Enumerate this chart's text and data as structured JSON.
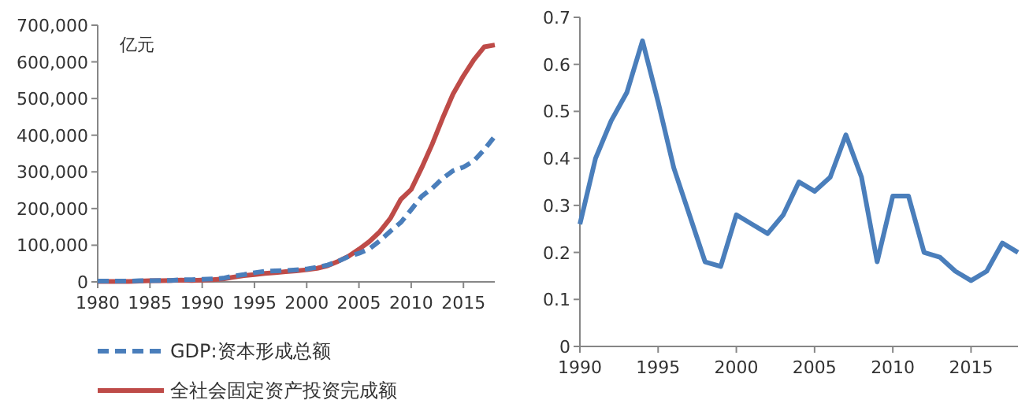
{
  "chart_data": [
    {
      "type": "line",
      "x": [
        1980,
        1981,
        1982,
        1983,
        1984,
        1985,
        1986,
        1987,
        1988,
        1989,
        1990,
        1991,
        1992,
        1993,
        1994,
        1995,
        1996,
        1997,
        1998,
        1999,
        2000,
        2001,
        2002,
        2003,
        2004,
        2005,
        2006,
        2007,
        2008,
        2009,
        2010,
        2011,
        2012,
        2013,
        2014,
        2015,
        2016,
        2017,
        2018
      ],
      "series": [
        {
          "name": "GDP:资本形成总额",
          "color": "#4a7ebb",
          "line_style": "dashed",
          "values": [
            2000,
            2000,
            2000,
            2000,
            3000,
            3000,
            4000,
            4000,
            6000,
            6000,
            7000,
            8000,
            10000,
            16000,
            20000,
            25000,
            29000,
            30000,
            31000,
            33000,
            35000,
            40000,
            46000,
            56000,
            69000,
            78000,
            90000,
            112000,
            138000,
            162000,
            197000,
            233000,
            255000,
            282000,
            303000,
            313000,
            330000,
            361000,
            397000
          ]
        },
        {
          "name": "全社会固定资产投资完成额",
          "color": "#be4b48",
          "line_style": "solid",
          "values": [
            1000,
            1000,
            1000,
            1000,
            2000,
            3000,
            3000,
            4000,
            5000,
            4000,
            5000,
            6000,
            8000,
            13000,
            17000,
            20000,
            23000,
            25000,
            28000,
            30000,
            33000,
            37000,
            44000,
            56000,
            70000,
            89000,
            110000,
            137000,
            173000,
            225000,
            252000,
            311000,
            375000,
            446000,
            512000,
            562000,
            606000,
            641000,
            646000
          ]
        }
      ],
      "xlim": [
        1980,
        2018
      ],
      "xticks": [
        1980,
        1985,
        1990,
        1995,
        2000,
        2005,
        2010,
        2015
      ],
      "ylim": [
        0,
        700000
      ],
      "yticks": [
        {
          "value": 0,
          "label": "0"
        },
        {
          "value": 100000,
          "label": "100,000"
        },
        {
          "value": 200000,
          "label": "200,000"
        },
        {
          "value": 300000,
          "label": "300,000"
        },
        {
          "value": 400000,
          "label": "400,000"
        },
        {
          "value": 500000,
          "label": "500,000"
        },
        {
          "value": 600000,
          "label": "600,000"
        },
        {
          "value": 700000,
          "label": "700,000"
        }
      ],
      "annotations": [
        "亿元"
      ],
      "legend": "bottom",
      "grid": false
    },
    {
      "type": "line",
      "x": [
        1990,
        1991,
        1992,
        1993,
        1994,
        1995,
        1996,
        1997,
        1998,
        1999,
        2000,
        2001,
        2002,
        2003,
        2004,
        2005,
        2006,
        2007,
        2008,
        2009,
        2010,
        2011,
        2012,
        2013,
        2014,
        2015,
        2016,
        2017,
        2018
      ],
      "series": [
        {
          "color": "#4a7ebb",
          "values": [
            0.26,
            0.4,
            0.48,
            0.54,
            0.65,
            0.52,
            0.38,
            0.28,
            0.18,
            0.17,
            0.28,
            0.26,
            0.24,
            0.28,
            0.35,
            0.33,
            0.36,
            0.45,
            0.36,
            0.18,
            0.32,
            0.32,
            0.2,
            0.19,
            0.16,
            0.14,
            0.16,
            0.22,
            0.2
          ]
        }
      ],
      "xlim": [
        1990,
        2018
      ],
      "xticks": [
        1990,
        1995,
        2000,
        2005,
        2010,
        2015
      ],
      "ylim": [
        0,
        0.7
      ],
      "yticks": [
        0,
        0.1,
        0.2,
        0.3,
        0.4,
        0.5,
        0.6,
        0.7
      ],
      "legend": false,
      "grid": false
    }
  ]
}
